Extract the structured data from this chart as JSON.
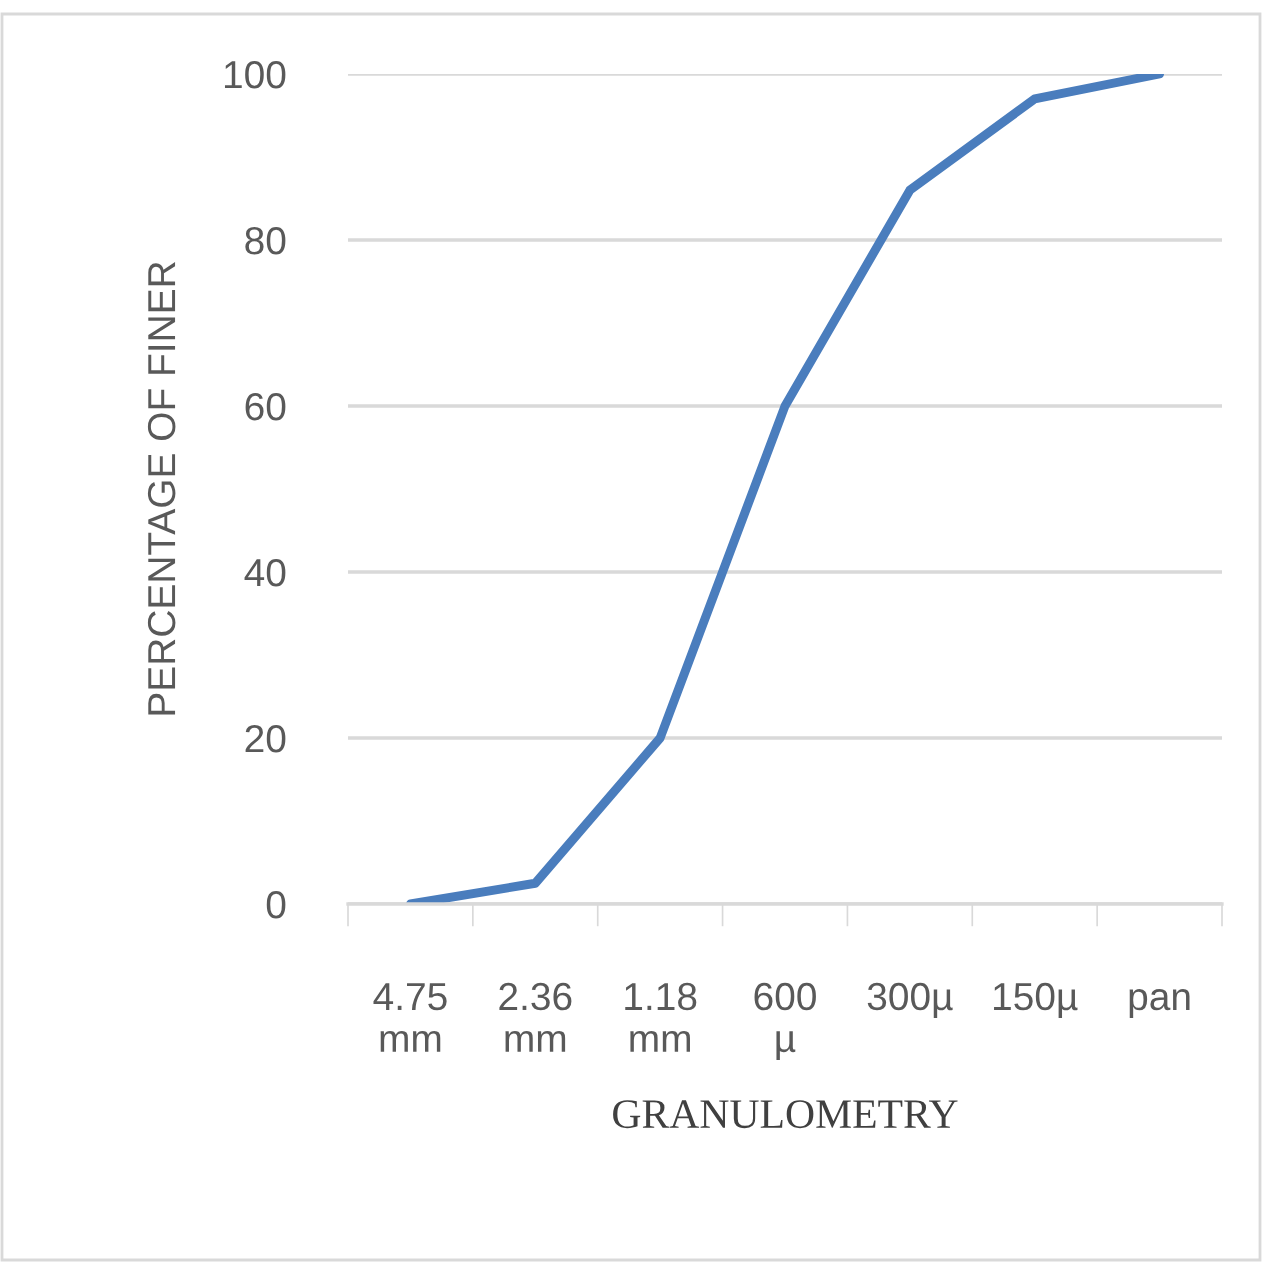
{
  "chart_data": {
    "type": "line",
    "xlabel": "GRANULOMETRY",
    "ylabel": "PERCENTAGE OF FINER",
    "categories": [
      "4.75\nmm",
      "2.36\nmm",
      "1.18\nmm",
      "600\nµ",
      "300µ",
      "150µ",
      "pan"
    ],
    "series": [
      {
        "color": "#4a7dbd",
        "values": [
          0,
          2.5,
          20,
          60,
          86,
          97,
          100
        ]
      }
    ],
    "ylim": [
      0,
      100
    ],
    "yticks": [
      0,
      20,
      40,
      60,
      80,
      100
    ],
    "grid": "y",
    "marker": "none",
    "line_style": "solid"
  }
}
